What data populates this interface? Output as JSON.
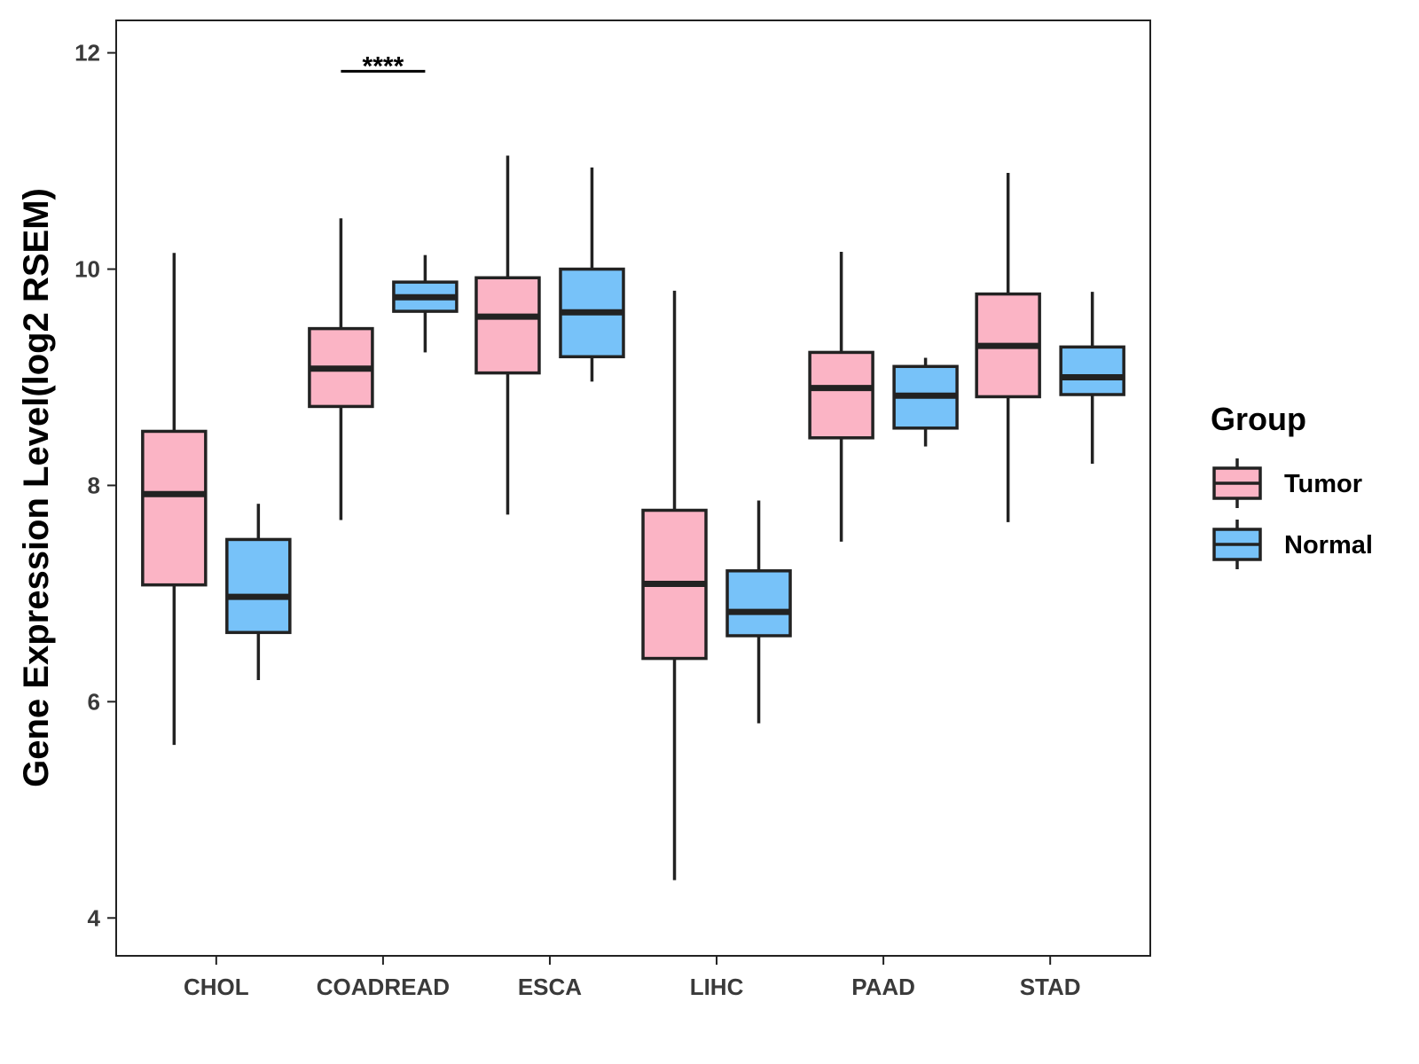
{
  "chart_data": {
    "type": "boxplot",
    "title": "",
    "xlabel": "",
    "ylabel": "Gene Expression Level(log2 RSEM)",
    "ylim": [
      3.65,
      12.3
    ],
    "yticks": [
      4,
      6,
      8,
      10,
      12
    ],
    "categories": [
      "CHOL",
      "COADREAD",
      "ESCA",
      "LIHC",
      "PAAD",
      "STAD"
    ],
    "legend": {
      "title": "Group",
      "position": "right"
    },
    "series": [
      {
        "name": "Tumor",
        "color": "#FBB4C5",
        "boxes": [
          {
            "min": 5.6,
            "q1": 7.08,
            "median": 7.92,
            "q3": 8.5,
            "max": 10.15
          },
          {
            "min": 7.68,
            "q1": 8.73,
            "median": 9.08,
            "q3": 9.45,
            "max": 10.47
          },
          {
            "min": 7.73,
            "q1": 9.04,
            "median": 9.56,
            "q3": 9.92,
            "max": 11.05
          },
          {
            "min": 4.35,
            "q1": 6.4,
            "median": 7.09,
            "q3": 7.77,
            "max": 9.8
          },
          {
            "min": 7.48,
            "q1": 8.44,
            "median": 8.9,
            "q3": 9.23,
            "max": 10.16
          },
          {
            "min": 7.66,
            "q1": 8.82,
            "median": 9.29,
            "q3": 9.77,
            "max": 10.89
          }
        ]
      },
      {
        "name": "Normal",
        "color": "#77C2F9",
        "boxes": [
          {
            "min": 6.2,
            "q1": 6.64,
            "median": 6.97,
            "q3": 7.5,
            "max": 7.83
          },
          {
            "min": 9.23,
            "q1": 9.61,
            "median": 9.74,
            "q3": 9.88,
            "max": 10.13
          },
          {
            "min": 8.96,
            "q1": 9.19,
            "median": 9.6,
            "q3": 10.0,
            "max": 10.94
          },
          {
            "min": 5.8,
            "q1": 6.61,
            "median": 6.83,
            "q3": 7.21,
            "max": 7.86
          },
          {
            "min": 8.36,
            "q1": 8.53,
            "median": 8.83,
            "q3": 9.1,
            "max": 9.18
          },
          {
            "min": 8.2,
            "q1": 8.84,
            "median": 9.0,
            "q3": 9.28,
            "max": 9.79
          }
        ]
      }
    ],
    "annotations": [
      {
        "category": "COADREAD",
        "label": "****",
        "y": 11.83
      }
    ]
  }
}
